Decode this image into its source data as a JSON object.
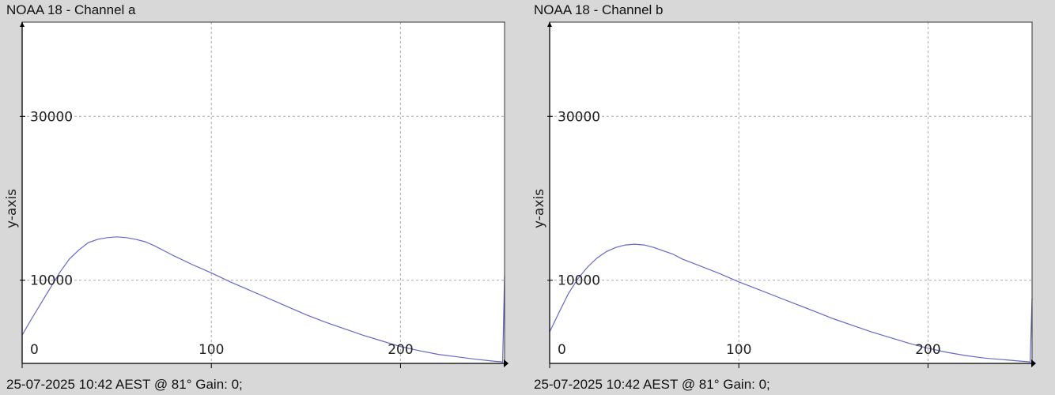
{
  "panels": [
    {
      "title": "NOAA 18 - Channel a",
      "footer": "25-07-2025 10:42 AEST @ 81° Gain: 0;",
      "ylabel": "y-axis"
    },
    {
      "title": "NOAA 18 - Channel b",
      "footer": "25-07-2025 10:42 AEST @ 81° Gain: 0;",
      "ylabel": "y-axis"
    }
  ],
  "colors": {
    "background": "#d8d8d8",
    "plot_bg": "#ffffff",
    "grid": "#aaaaaa",
    "line": "#6666cc",
    "axis": "#000000"
  },
  "chart_data": [
    {
      "type": "line",
      "title": "NOAA 18 - Channel a",
      "xlabel": "",
      "ylabel": "y-axis",
      "xlim": [
        0,
        255
      ],
      "ylim": [
        -150,
        41500
      ],
      "xticks": [
        0,
        100,
        200
      ],
      "xtick_labels": [
        "0",
        "100",
        "200"
      ],
      "yticks": [
        10000,
        30000
      ],
      "ytick_labels": [
        "10000",
        "30000"
      ],
      "grid": true,
      "series": [
        {
          "x": [
            0,
            5,
            10,
            15,
            20,
            25,
            30,
            35,
            40,
            45,
            50,
            55,
            60,
            65,
            70,
            75,
            80,
            90,
            100,
            110,
            120,
            130,
            140,
            150,
            160,
            170,
            180,
            190,
            200,
            210,
            220,
            230,
            240,
            250,
            253,
            254,
            255
          ],
          "y": [
            3300,
            5300,
            7200,
            9100,
            11000,
            12600,
            13700,
            14600,
            15000,
            15200,
            15300,
            15200,
            15000,
            14700,
            14200,
            13600,
            13000,
            11900,
            10900,
            9800,
            8800,
            7800,
            6800,
            5800,
            4900,
            4100,
            3300,
            2600,
            1900,
            1400,
            950,
            650,
            350,
            100,
            50,
            0,
            10500
          ]
        }
      ]
    },
    {
      "type": "line",
      "title": "NOAA 18 - Channel b",
      "xlabel": "",
      "ylabel": "y-axis",
      "xlim": [
        0,
        255
      ],
      "ylim": [
        -150,
        41500
      ],
      "xticks": [
        0,
        100,
        200
      ],
      "xtick_labels": [
        "0",
        "100",
        "200"
      ],
      "yticks": [
        10000,
        30000
      ],
      "ytick_labels": [
        "10000",
        "30000"
      ],
      "grid": true,
      "series": [
        {
          "x": [
            0,
            5,
            10,
            15,
            20,
            25,
            30,
            35,
            40,
            45,
            50,
            55,
            60,
            65,
            70,
            80,
            90,
            100,
            110,
            120,
            130,
            140,
            150,
            160,
            170,
            180,
            190,
            200,
            210,
            220,
            230,
            240,
            250,
            253,
            254,
            255
          ],
          "y": [
            3700,
            6100,
            8400,
            10200,
            11600,
            12700,
            13500,
            14000,
            14300,
            14400,
            14300,
            14000,
            13600,
            13200,
            12600,
            11700,
            10800,
            9800,
            8900,
            8000,
            7100,
            6200,
            5300,
            4500,
            3700,
            3000,
            2300,
            1700,
            1200,
            800,
            500,
            300,
            100,
            50,
            0,
            7800
          ]
        }
      ]
    }
  ]
}
